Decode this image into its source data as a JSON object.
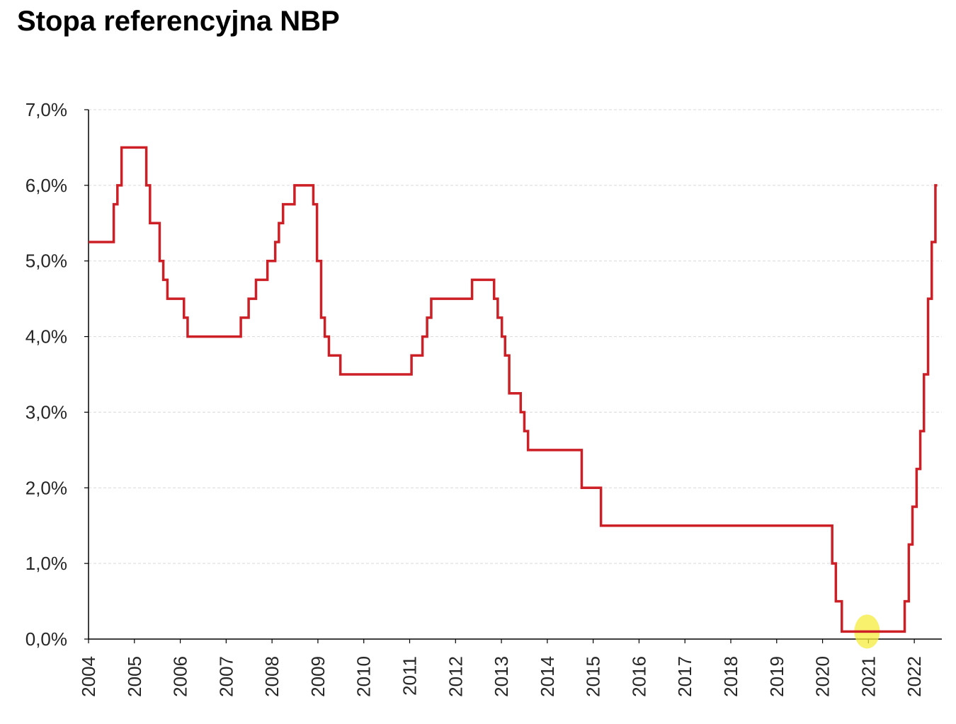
{
  "chart_data": {
    "type": "line",
    "title": "Stopa referencyjna NBP",
    "xlabel": "",
    "ylabel": "",
    "ylim": [
      0,
      7
    ],
    "xlim": [
      2004,
      2022.6
    ],
    "y_ticks": [
      "0,0%",
      "1,0%",
      "2,0%",
      "3,0%",
      "4,0%",
      "5,0%",
      "6,0%",
      "7,0%"
    ],
    "x_ticks": [
      "2004",
      "2005",
      "2006",
      "2007",
      "2008",
      "2009",
      "2010",
      "2011",
      "2012",
      "2013",
      "2014",
      "2015",
      "2016",
      "2017",
      "2018",
      "2019",
      "2020",
      "2021",
      "2022"
    ],
    "grid": true,
    "step": true,
    "colors": {
      "line": "#cc1f26",
      "highlight": "#f5ec3c"
    },
    "highlight_marker": {
      "x": 2020.97,
      "y": 0.1
    },
    "series": [
      {
        "values": [
          [
            2004.0,
            5.25
          ],
          [
            2004.55,
            5.75
          ],
          [
            2004.63,
            6.0
          ],
          [
            2004.72,
            6.5
          ],
          [
            2005.26,
            6.0
          ],
          [
            2005.34,
            5.5
          ],
          [
            2005.55,
            5.0
          ],
          [
            2005.63,
            4.75
          ],
          [
            2005.72,
            4.5
          ],
          [
            2006.08,
            4.25
          ],
          [
            2006.16,
            4.0
          ],
          [
            2007.32,
            4.25
          ],
          [
            2007.49,
            4.5
          ],
          [
            2007.65,
            4.75
          ],
          [
            2007.9,
            5.0
          ],
          [
            2008.07,
            5.25
          ],
          [
            2008.15,
            5.5
          ],
          [
            2008.24,
            5.75
          ],
          [
            2008.49,
            6.0
          ],
          [
            2008.9,
            5.75
          ],
          [
            2008.98,
            5.0
          ],
          [
            2009.07,
            4.25
          ],
          [
            2009.15,
            4.0
          ],
          [
            2009.24,
            3.75
          ],
          [
            2009.49,
            3.5
          ],
          [
            2011.04,
            3.75
          ],
          [
            2011.28,
            4.0
          ],
          [
            2011.38,
            4.25
          ],
          [
            2011.47,
            4.5
          ],
          [
            2012.36,
            4.75
          ],
          [
            2012.84,
            4.5
          ],
          [
            2012.92,
            4.25
          ],
          [
            2013.01,
            4.0
          ],
          [
            2013.08,
            3.75
          ],
          [
            2013.17,
            3.25
          ],
          [
            2013.42,
            3.0
          ],
          [
            2013.5,
            2.75
          ],
          [
            2013.58,
            2.5
          ],
          [
            2014.75,
            2.0
          ],
          [
            2015.17,
            1.5
          ],
          [
            2020.21,
            1.0
          ],
          [
            2020.29,
            0.5
          ],
          [
            2020.42,
            0.1
          ],
          [
            2021.79,
            0.5
          ],
          [
            2021.88,
            1.25
          ],
          [
            2021.96,
            1.75
          ],
          [
            2022.05,
            2.25
          ],
          [
            2022.13,
            2.75
          ],
          [
            2022.21,
            3.5
          ],
          [
            2022.3,
            4.5
          ],
          [
            2022.38,
            5.25
          ],
          [
            2022.46,
            6.0
          ],
          [
            2022.5,
            6.0
          ]
        ]
      }
    ]
  }
}
